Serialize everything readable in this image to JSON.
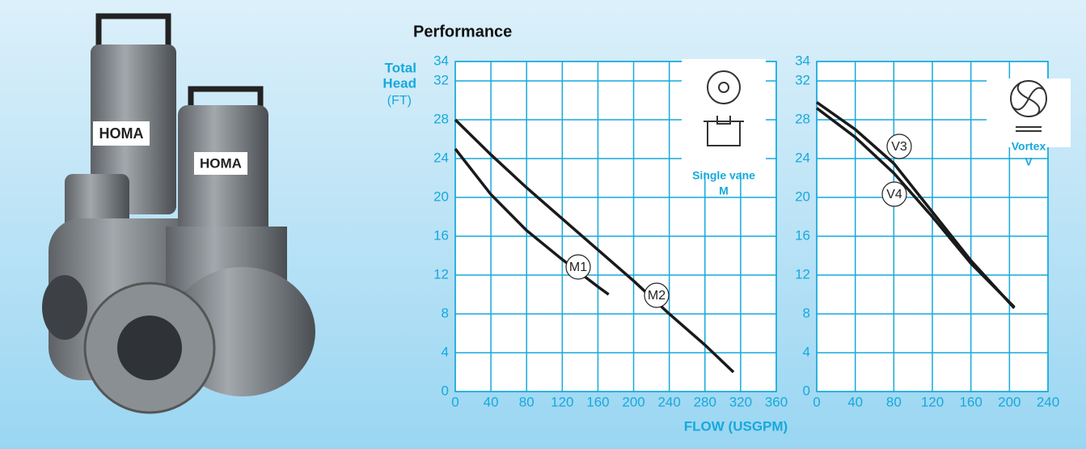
{
  "brand": "HOMA",
  "chart_data": [
    {
      "type": "line",
      "title": "Performance",
      "y_label": [
        "Total",
        "Head",
        "(FT)"
      ],
      "x_label": "FLOW (USGPM)",
      "annotation": [
        "Single vane",
        "M"
      ],
      "xlim": [
        0,
        360
      ],
      "xticks": [
        0,
        40,
        80,
        120,
        160,
        200,
        240,
        280,
        320,
        360
      ],
      "ylim": [
        0,
        34
      ],
      "yticks": [
        0,
        4,
        8,
        12,
        16,
        20,
        24,
        28,
        32,
        34
      ],
      "grid": true,
      "series": [
        {
          "name": "M1",
          "color": "#1a1a1a",
          "x": [
            0,
            40,
            80,
            120,
            160,
            172
          ],
          "values": [
            25,
            20.3,
            16.6,
            13.6,
            10.8,
            10
          ]
        },
        {
          "name": "M2",
          "color": "#1a1a1a",
          "x": [
            0,
            40,
            80,
            120,
            160,
            200,
            240,
            280,
            312
          ],
          "values": [
            28,
            24.4,
            21,
            17.8,
            14.6,
            11.4,
            8,
            4.8,
            2
          ]
        }
      ]
    },
    {
      "type": "line",
      "annotation": [
        "Vortex",
        "V"
      ],
      "xlim": [
        0,
        240
      ],
      "xticks": [
        0,
        40,
        80,
        120,
        160,
        200,
        240
      ],
      "ylim": [
        0,
        34
      ],
      "yticks": [
        0,
        4,
        8,
        12,
        16,
        20,
        24,
        28,
        32,
        34
      ],
      "grid": true,
      "series": [
        {
          "name": "V3",
          "color": "#1a1a1a",
          "x": [
            0,
            40,
            80,
            120,
            160,
            205
          ],
          "values": [
            29.8,
            27,
            23.5,
            18.5,
            13.5,
            8.6
          ]
        },
        {
          "name": "V4",
          "color": "#1a1a1a",
          "x": [
            0,
            40,
            80,
            120,
            160,
            205
          ],
          "values": [
            29.2,
            26.2,
            22.5,
            18,
            13.2,
            8.7
          ]
        }
      ]
    }
  ]
}
